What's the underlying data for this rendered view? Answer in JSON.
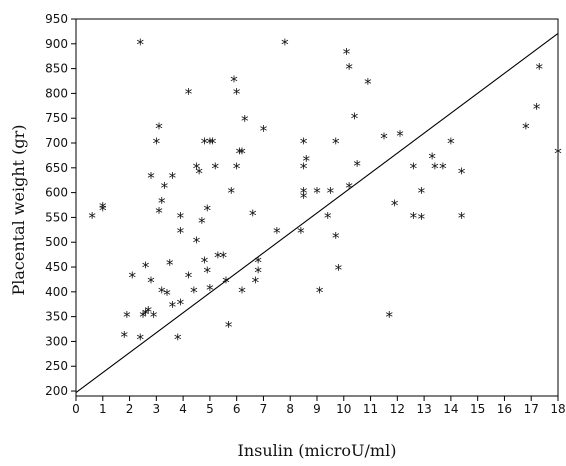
{
  "chart_data": {
    "type": "scatter",
    "title": "",
    "xlabel": "Insulin (microU/ml)",
    "ylabel": "Placental weight (gr)",
    "xlim": [
      0,
      18
    ],
    "ylim": [
      190,
      950
    ],
    "x_ticks": [
      0,
      1,
      2,
      3,
      4,
      5,
      6,
      7,
      8,
      9,
      10,
      11,
      12,
      13,
      14,
      15,
      16,
      17,
      18
    ],
    "y_ticks": [
      200,
      250,
      300,
      350,
      400,
      450,
      500,
      550,
      600,
      650,
      700,
      750,
      800,
      850,
      900,
      950
    ],
    "grid": false,
    "marker": "*",
    "points": [
      [
        0.6,
        550
      ],
      [
        1.0,
        570
      ],
      [
        1.0,
        565
      ],
      [
        1.8,
        310
      ],
      [
        1.9,
        350
      ],
      [
        2.1,
        430
      ],
      [
        2.4,
        900
      ],
      [
        2.4,
        305
      ],
      [
        2.5,
        350
      ],
      [
        2.6,
        355
      ],
      [
        2.6,
        450
      ],
      [
        2.7,
        360
      ],
      [
        2.8,
        630
      ],
      [
        2.8,
        420
      ],
      [
        2.9,
        350
      ],
      [
        3.0,
        700
      ],
      [
        3.1,
        730
      ],
      [
        3.1,
        560
      ],
      [
        3.2,
        580
      ],
      [
        3.2,
        400
      ],
      [
        3.3,
        610
      ],
      [
        3.4,
        395
      ],
      [
        3.5,
        455
      ],
      [
        3.6,
        630
      ],
      [
        3.6,
        370
      ],
      [
        3.8,
        305
      ],
      [
        3.9,
        550
      ],
      [
        3.9,
        520
      ],
      [
        3.9,
        375
      ],
      [
        4.2,
        800
      ],
      [
        4.2,
        430
      ],
      [
        4.4,
        400
      ],
      [
        4.5,
        650
      ],
      [
        4.5,
        500
      ],
      [
        4.6,
        640
      ],
      [
        4.7,
        540
      ],
      [
        4.8,
        700
      ],
      [
        4.8,
        460
      ],
      [
        4.9,
        565
      ],
      [
        4.9,
        440
      ],
      [
        5.0,
        405
      ],
      [
        5.0,
        700
      ],
      [
        5.1,
        700
      ],
      [
        5.2,
        650
      ],
      [
        5.3,
        470
      ],
      [
        5.5,
        470
      ],
      [
        5.6,
        420
      ],
      [
        5.7,
        330
      ],
      [
        5.8,
        600
      ],
      [
        5.9,
        825
      ],
      [
        6.0,
        800
      ],
      [
        6.0,
        650
      ],
      [
        6.1,
        680
      ],
      [
        6.2,
        680
      ],
      [
        6.2,
        400
      ],
      [
        6.3,
        745
      ],
      [
        6.6,
        555
      ],
      [
        6.7,
        420
      ],
      [
        6.8,
        440
      ],
      [
        6.8,
        460
      ],
      [
        7.0,
        725
      ],
      [
        7.5,
        520
      ],
      [
        7.8,
        900
      ],
      [
        8.4,
        520
      ],
      [
        8.5,
        700
      ],
      [
        8.5,
        650
      ],
      [
        8.5,
        600
      ],
      [
        8.5,
        590
      ],
      [
        8.6,
        665
      ],
      [
        9.0,
        600
      ],
      [
        9.1,
        400
      ],
      [
        9.4,
        550
      ],
      [
        9.5,
        600
      ],
      [
        9.7,
        700
      ],
      [
        9.7,
        510
      ],
      [
        9.8,
        445
      ],
      [
        10.1,
        880
      ],
      [
        10.2,
        850
      ],
      [
        10.2,
        610
      ],
      [
        10.4,
        750
      ],
      [
        10.5,
        655
      ],
      [
        10.9,
        820
      ],
      [
        11.5,
        710
      ],
      [
        11.7,
        350
      ],
      [
        11.9,
        575
      ],
      [
        12.1,
        715
      ],
      [
        12.6,
        650
      ],
      [
        12.6,
        550
      ],
      [
        12.9,
        600
      ],
      [
        12.9,
        548
      ],
      [
        13.3,
        670
      ],
      [
        13.4,
        650
      ],
      [
        13.7,
        650
      ],
      [
        14.0,
        700
      ],
      [
        14.4,
        550
      ],
      [
        14.4,
        640
      ],
      [
        16.8,
        730
      ],
      [
        17.2,
        770
      ],
      [
        17.3,
        850
      ],
      [
        18.0,
        680
      ]
    ],
    "regression_line": {
      "x": [
        0,
        18
      ],
      "y": [
        197,
        921
      ]
    }
  }
}
